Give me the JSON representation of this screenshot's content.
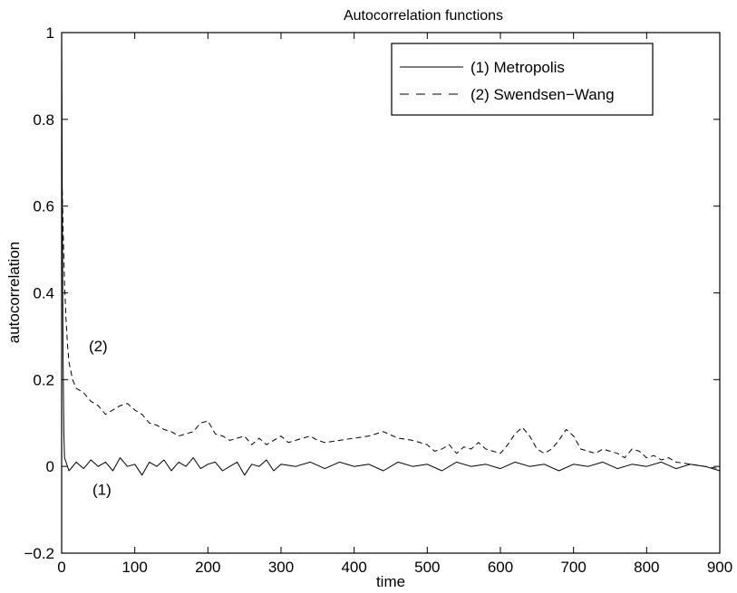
{
  "chart_data": {
    "type": "line",
    "title": "Autocorrelation functions",
    "xlabel": "time",
    "ylabel": "autocorrelation",
    "xlim": [
      0,
      900
    ],
    "ylim": [
      -0.2,
      1
    ],
    "xticks": [
      0,
      100,
      200,
      300,
      400,
      500,
      600,
      700,
      800,
      900
    ],
    "xtick_labels": [
      "0",
      "100",
      "200",
      "300",
      "400",
      "500",
      "600",
      "700",
      "800",
      "900"
    ],
    "yticks": [
      -0.2,
      0,
      0.2,
      0.4,
      0.6,
      0.8,
      1
    ],
    "ytick_labels": [
      "−0.2",
      "0",
      "0.2",
      "0.4",
      "0.6",
      "0.8",
      "1"
    ],
    "grid": false,
    "legend_position": "top-right",
    "series": [
      {
        "name": "(1) Metropolis",
        "style": "solid",
        "color": "#000000",
        "points": [
          [
            0,
            1.0
          ],
          [
            1,
            0.55
          ],
          [
            2,
            0.25
          ],
          [
            3,
            0.08
          ],
          [
            4,
            0.02
          ],
          [
            6,
            0.01
          ],
          [
            10,
            -0.01
          ],
          [
            20,
            0.01
          ],
          [
            30,
            -0.005
          ],
          [
            40,
            0.015
          ],
          [
            50,
            0.0
          ],
          [
            60,
            0.01
          ],
          [
            70,
            -0.01
          ],
          [
            80,
            0.02
          ],
          [
            90,
            0.0
          ],
          [
            100,
            0.005
          ],
          [
            110,
            -0.02
          ],
          [
            120,
            0.01
          ],
          [
            130,
            0.0
          ],
          [
            140,
            0.015
          ],
          [
            150,
            -0.01
          ],
          [
            160,
            0.01
          ],
          [
            170,
            0.0
          ],
          [
            180,
            0.02
          ],
          [
            190,
            -0.005
          ],
          [
            200,
            0.005
          ],
          [
            210,
            0.01
          ],
          [
            220,
            -0.01
          ],
          [
            230,
            0.0
          ],
          [
            240,
            0.01
          ],
          [
            250,
            -0.02
          ],
          [
            260,
            0.005
          ],
          [
            270,
            0.0
          ],
          [
            280,
            0.015
          ],
          [
            290,
            -0.01
          ],
          [
            300,
            0.005
          ],
          [
            320,
            0.0
          ],
          [
            340,
            0.01
          ],
          [
            360,
            -0.005
          ],
          [
            380,
            0.01
          ],
          [
            400,
            0.0
          ],
          [
            420,
            0.005
          ],
          [
            440,
            -0.01
          ],
          [
            460,
            0.01
          ],
          [
            480,
            0.0
          ],
          [
            500,
            0.005
          ],
          [
            520,
            -0.01
          ],
          [
            540,
            0.01
          ],
          [
            560,
            0.0
          ],
          [
            580,
            0.005
          ],
          [
            600,
            -0.005
          ],
          [
            620,
            0.01
          ],
          [
            640,
            0.0
          ],
          [
            660,
            0.005
          ],
          [
            680,
            -0.01
          ],
          [
            700,
            0.005
          ],
          [
            720,
            0.0
          ],
          [
            740,
            0.01
          ],
          [
            760,
            -0.005
          ],
          [
            780,
            0.005
          ],
          [
            800,
            0.0
          ],
          [
            820,
            0.01
          ],
          [
            840,
            -0.005
          ],
          [
            860,
            0.005
          ],
          [
            880,
            0.0
          ],
          [
            900,
            -0.01
          ]
        ],
        "annotation": {
          "text": "(1)",
          "x": 55,
          "y": -0.065
        }
      },
      {
        "name": "(2) Swendsen−Wang",
        "style": "dashed",
        "color": "#000000",
        "points": [
          [
            0,
            0.7
          ],
          [
            2,
            0.55
          ],
          [
            4,
            0.42
          ],
          [
            6,
            0.34
          ],
          [
            8,
            0.28
          ],
          [
            10,
            0.24
          ],
          [
            15,
            0.2
          ],
          [
            20,
            0.18
          ],
          [
            30,
            0.17
          ],
          [
            40,
            0.15
          ],
          [
            50,
            0.14
          ],
          [
            60,
            0.12
          ],
          [
            70,
            0.13
          ],
          [
            80,
            0.14
          ],
          [
            90,
            0.145
          ],
          [
            100,
            0.13
          ],
          [
            110,
            0.12
          ],
          [
            120,
            0.1
          ],
          [
            130,
            0.095
          ],
          [
            140,
            0.085
          ],
          [
            150,
            0.08
          ],
          [
            160,
            0.07
          ],
          [
            170,
            0.075
          ],
          [
            180,
            0.08
          ],
          [
            190,
            0.1
          ],
          [
            200,
            0.105
          ],
          [
            210,
            0.075
          ],
          [
            220,
            0.07
          ],
          [
            230,
            0.06
          ],
          [
            240,
            0.065
          ],
          [
            250,
            0.07
          ],
          [
            260,
            0.05
          ],
          [
            270,
            0.065
          ],
          [
            280,
            0.05
          ],
          [
            290,
            0.06
          ],
          [
            300,
            0.07
          ],
          [
            310,
            0.055
          ],
          [
            320,
            0.06
          ],
          [
            330,
            0.065
          ],
          [
            340,
            0.07
          ],
          [
            350,
            0.06
          ],
          [
            360,
            0.055
          ],
          [
            380,
            0.06
          ],
          [
            400,
            0.065
          ],
          [
            420,
            0.07
          ],
          [
            440,
            0.08
          ],
          [
            460,
            0.065
          ],
          [
            480,
            0.06
          ],
          [
            500,
            0.05
          ],
          [
            510,
            0.035
          ],
          [
            520,
            0.04
          ],
          [
            530,
            0.05
          ],
          [
            540,
            0.03
          ],
          [
            550,
            0.045
          ],
          [
            560,
            0.04
          ],
          [
            570,
            0.055
          ],
          [
            580,
            0.04
          ],
          [
            590,
            0.035
          ],
          [
            600,
            0.03
          ],
          [
            610,
            0.05
          ],
          [
            620,
            0.075
          ],
          [
            630,
            0.09
          ],
          [
            640,
            0.07
          ],
          [
            650,
            0.04
          ],
          [
            660,
            0.03
          ],
          [
            670,
            0.04
          ],
          [
            680,
            0.06
          ],
          [
            690,
            0.085
          ],
          [
            700,
            0.07
          ],
          [
            710,
            0.04
          ],
          [
            720,
            0.035
          ],
          [
            730,
            0.03
          ],
          [
            740,
            0.04
          ],
          [
            750,
            0.035
          ],
          [
            760,
            0.03
          ],
          [
            770,
            0.02
          ],
          [
            780,
            0.04
          ],
          [
            790,
            0.035
          ],
          [
            800,
            0.02
          ],
          [
            810,
            0.025
          ],
          [
            820,
            0.015
          ],
          [
            830,
            0.02
          ],
          [
            840,
            0.01
          ],
          [
            860,
            0.005
          ],
          [
            880,
            0.0
          ],
          [
            900,
            -0.005
          ]
        ],
        "annotation": {
          "text": "(2)",
          "x": 50,
          "y": 0.265
        }
      }
    ]
  }
}
